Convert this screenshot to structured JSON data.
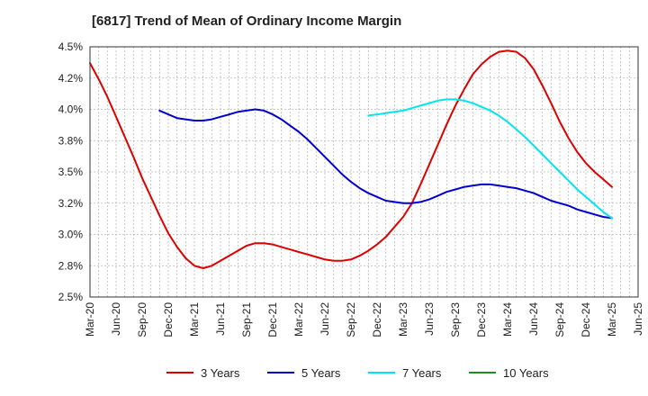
{
  "chart_data": {
    "type": "line",
    "title": "[6817]  Trend of Mean of Ordinary Income Margin",
    "xlabel": "",
    "ylabel": "",
    "y_unit": "%",
    "ylim": [
      2.5,
      4.5
    ],
    "y_ticks": [
      "2.5%",
      "2.8%",
      "3.0%",
      "3.2%",
      "3.5%",
      "3.8%",
      "4.0%",
      "4.2%",
      "4.5%"
    ],
    "x_tick_labels": [
      "Mar-20",
      "Jun-20",
      "Sep-20",
      "Dec-20",
      "Mar-21",
      "Jun-21",
      "Sep-21",
      "Dec-21",
      "Mar-22",
      "Jun-22",
      "Sep-22",
      "Dec-22",
      "Mar-23",
      "Jun-23",
      "Sep-23",
      "Dec-23",
      "Mar-24",
      "Jun-24",
      "Sep-24",
      "Dec-24",
      "Mar-25",
      "Jun-25"
    ],
    "grid": true,
    "legend_position": "bottom",
    "series": [
      {
        "name": "3 Years",
        "color": "#dd0000",
        "x": [
          "Mar-20",
          "Apr-20",
          "May-20",
          "Jun-20",
          "Jul-20",
          "Aug-20",
          "Sep-20",
          "Oct-20",
          "Nov-20",
          "Dec-20",
          "Jan-21",
          "Feb-21",
          "Mar-21",
          "Apr-21",
          "May-21",
          "Jun-21",
          "Jul-21",
          "Aug-21",
          "Sep-21",
          "Oct-21",
          "Nov-21",
          "Dec-21",
          "Jan-22",
          "Feb-22",
          "Mar-22",
          "Apr-22",
          "May-22",
          "Jun-22",
          "Jul-22",
          "Aug-22",
          "Sep-22",
          "Oct-22",
          "Nov-22",
          "Dec-22",
          "Jan-23",
          "Feb-23",
          "Mar-23",
          "Apr-23",
          "May-23",
          "Jun-23",
          "Jul-23",
          "Aug-23",
          "Sep-23",
          "Oct-23",
          "Nov-23",
          "Dec-23",
          "Jan-24",
          "Feb-24",
          "Mar-24",
          "Apr-24",
          "May-24",
          "Jun-24",
          "Jul-24",
          "Aug-24",
          "Sep-24",
          "Oct-24",
          "Nov-24",
          "Dec-24",
          "Jan-25",
          "Feb-25",
          "Mar-25"
        ],
        "values": [
          4.37,
          4.24,
          4.1,
          3.94,
          3.78,
          3.62,
          3.45,
          3.3,
          3.15,
          3.01,
          2.9,
          2.81,
          2.75,
          2.73,
          2.75,
          2.79,
          2.83,
          2.87,
          2.91,
          2.93,
          2.93,
          2.92,
          2.9,
          2.88,
          2.86,
          2.84,
          2.82,
          2.8,
          2.79,
          2.79,
          2.8,
          2.83,
          2.87,
          2.92,
          2.98,
          3.06,
          3.14,
          3.25,
          3.4,
          3.56,
          3.72,
          3.88,
          4.03,
          4.16,
          4.28,
          4.36,
          4.42,
          4.46,
          4.47,
          4.46,
          4.41,
          4.32,
          4.19,
          4.05,
          3.9,
          3.77,
          3.66,
          3.57,
          3.5,
          3.44,
          3.38
        ]
      },
      {
        "name": "5 Years",
        "color": "#0000cc",
        "x": [
          "Mar-20",
          "Apr-20",
          "May-20",
          "Jun-20",
          "Jul-20",
          "Aug-20",
          "Sep-20",
          "Oct-20",
          "Nov-20",
          "Dec-20",
          "Jan-21",
          "Feb-21",
          "Mar-21",
          "Apr-21",
          "May-21",
          "Jun-21",
          "Jul-21",
          "Aug-21",
          "Sep-21",
          "Oct-21",
          "Nov-21",
          "Dec-21",
          "Jan-22",
          "Feb-22",
          "Mar-22",
          "Apr-22",
          "May-22",
          "Jun-22",
          "Jul-22",
          "Aug-22",
          "Sep-22",
          "Oct-22",
          "Nov-22",
          "Dec-22",
          "Jan-23",
          "Feb-23",
          "Mar-23",
          "Apr-23",
          "May-23",
          "Jun-23",
          "Jul-23",
          "Aug-23",
          "Sep-23",
          "Oct-23",
          "Nov-23",
          "Dec-23",
          "Jan-24",
          "Feb-24",
          "Mar-24",
          "Apr-24",
          "May-24",
          "Jun-24",
          "Jul-24",
          "Aug-24",
          "Sep-24",
          "Oct-24",
          "Nov-24",
          "Dec-24",
          "Jan-25",
          "Feb-25",
          "Mar-25"
        ],
        "values": [
          null,
          null,
          null,
          null,
          null,
          null,
          null,
          null,
          3.99,
          3.96,
          3.93,
          3.92,
          3.91,
          3.91,
          3.92,
          3.94,
          3.96,
          3.98,
          3.99,
          4.0,
          3.99,
          3.96,
          3.92,
          3.87,
          3.82,
          3.76,
          3.69,
          3.62,
          3.55,
          3.48,
          3.42,
          3.37,
          3.33,
          3.3,
          3.27,
          3.26,
          3.25,
          3.25,
          3.26,
          3.28,
          3.31,
          3.34,
          3.36,
          3.38,
          3.39,
          3.4,
          3.4,
          3.39,
          3.38,
          3.37,
          3.35,
          3.33,
          3.3,
          3.27,
          3.25,
          3.23,
          3.2,
          3.18,
          3.16,
          3.14,
          3.13
        ]
      },
      {
        "name": "7 Years",
        "color": "#00e5ee",
        "x": [
          "Mar-20",
          "Apr-20",
          "May-20",
          "Jun-20",
          "Jul-20",
          "Aug-20",
          "Sep-20",
          "Oct-20",
          "Nov-20",
          "Dec-20",
          "Jan-21",
          "Feb-21",
          "Mar-21",
          "Apr-21",
          "May-21",
          "Jun-21",
          "Jul-21",
          "Aug-21",
          "Sep-21",
          "Oct-21",
          "Nov-21",
          "Dec-21",
          "Jan-22",
          "Feb-22",
          "Mar-22",
          "Apr-22",
          "May-22",
          "Jun-22",
          "Jul-22",
          "Aug-22",
          "Sep-22",
          "Oct-22",
          "Nov-22",
          "Dec-22",
          "Jan-23",
          "Feb-23",
          "Mar-23",
          "Apr-23",
          "May-23",
          "Jun-23",
          "Jul-23",
          "Aug-23",
          "Sep-23",
          "Oct-23",
          "Nov-23",
          "Dec-23",
          "Jan-24",
          "Feb-24",
          "Mar-24",
          "Apr-24",
          "May-24",
          "Jun-24",
          "Jul-24",
          "Aug-24",
          "Sep-24",
          "Oct-24",
          "Nov-24",
          "Dec-24",
          "Jan-25",
          "Feb-25",
          "Mar-25"
        ],
        "values": [
          null,
          null,
          null,
          null,
          null,
          null,
          null,
          null,
          null,
          null,
          null,
          null,
          null,
          null,
          null,
          null,
          null,
          null,
          null,
          null,
          null,
          null,
          null,
          null,
          null,
          null,
          null,
          null,
          null,
          null,
          null,
          null,
          3.95,
          3.96,
          3.97,
          3.98,
          3.99,
          4.01,
          4.03,
          4.05,
          4.07,
          4.08,
          4.08,
          4.07,
          4.05,
          4.02,
          3.99,
          3.95,
          3.9,
          3.84,
          3.78,
          3.71,
          3.64,
          3.57,
          3.5,
          3.43,
          3.36,
          3.3,
          3.24,
          3.18,
          3.13
        ]
      },
      {
        "name": "10 Years",
        "color": "#228b22",
        "x": [],
        "values": []
      }
    ]
  }
}
